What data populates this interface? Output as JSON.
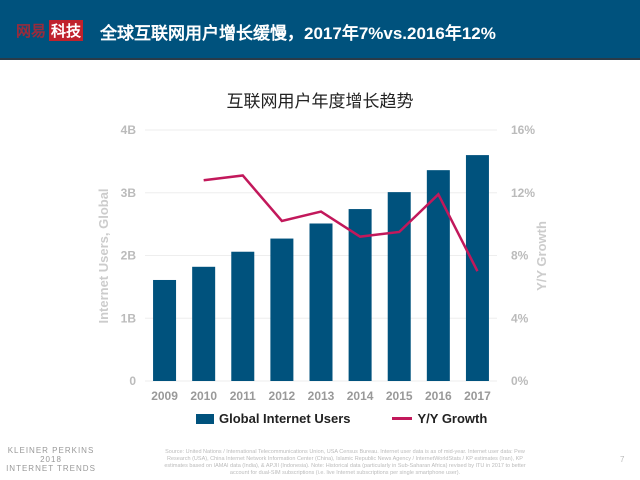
{
  "header": {
    "logo_part1": "网易",
    "logo_part2": "科技",
    "title": "全球互联网用户增长缓慢，2017年7%vs.2016年12%"
  },
  "chart_data": {
    "type": "bar+line",
    "title": "互联网用户年度增长趋势",
    "categories": [
      "2009",
      "2010",
      "2011",
      "2012",
      "2013",
      "2014",
      "2015",
      "2016",
      "2017"
    ],
    "series": [
      {
        "name": "Global Internet Users",
        "type": "bar",
        "axis": "left",
        "unit": "B",
        "values": [
          1.61,
          1.82,
          2.06,
          2.27,
          2.51,
          2.74,
          3.01,
          3.36,
          3.6
        ],
        "color": "#00527d"
      },
      {
        "name": "Y/Y Growth",
        "type": "line",
        "axis": "right",
        "unit": "%",
        "values": [
          null,
          12.8,
          13.1,
          10.2,
          10.8,
          9.2,
          9.5,
          11.9,
          7.0
        ],
        "color": "#c2185b"
      }
    ],
    "ylabel": "Internet Users, Global",
    "y2label": "Y/Y Growth",
    "ylim": [
      0,
      4
    ],
    "y2lim": [
      0,
      16
    ],
    "yticks": [
      "0",
      "1B",
      "2B",
      "3B",
      "4B"
    ],
    "y2ticks": [
      "0%",
      "4%",
      "8%",
      "12%",
      "16%"
    ],
    "grid": true,
    "legend": "bottom"
  },
  "footer": {
    "brand_line1": "KLEINER PERKINS",
    "brand_line2": "2018",
    "brand_line3": "INTERNET TRENDS",
    "source": "Source: United Nations / International Telecommunications Union, USA Census Bureau. Internet user data is as of mid-year. Internet user data: Pew Research (USA), China Internet Network Information Center (China), Islamic Republic News Agency / InternetWorldStats / KP estimates (Iran), KP estimates based on IAMAI data (India), & APJII (Indonesia). Note: Historical data (particularly in Sub-Saharan Africa) revised by ITU in 2017 to better account for dual-SIM subscriptions (i.e. live Internet subscriptions per single smartphone user).",
    "page": "7"
  }
}
